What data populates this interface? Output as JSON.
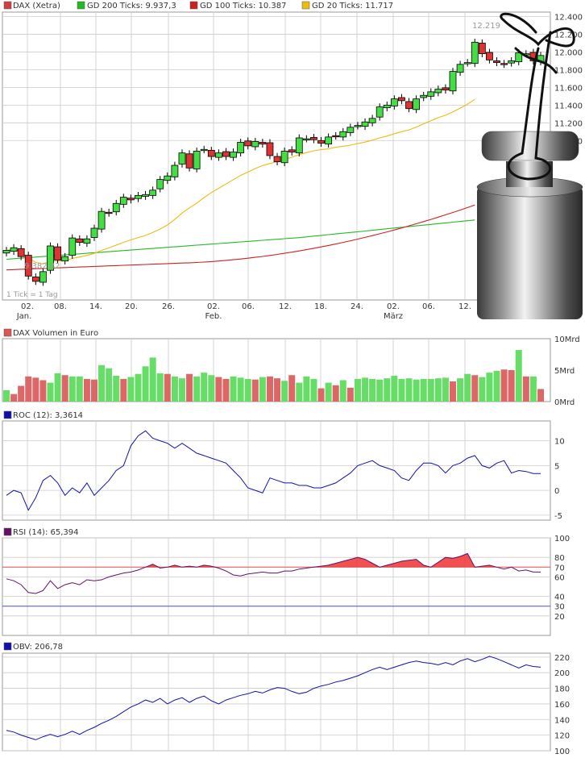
{
  "colors": {
    "candle_up": "#44dd44",
    "candle_down": "#dd3333",
    "ma200": "#22bb22",
    "ma100": "#cc2222",
    "ma20": "#eebb11",
    "roc": "#1111aa",
    "rsi": "#661166",
    "rsi_fill": "#ee3333",
    "obv": "#1111aa",
    "grid": "#cccccc"
  },
  "chart_data": [
    {
      "type": "candlestick",
      "legend": [
        "DAX (Xetra)",
        "GD 200 Ticks: 9.937,3",
        "GD 100 Ticks: 10.387",
        "GD 20 Ticks: 11.717"
      ],
      "ylim": [
        9200,
        12450
      ],
      "yticks": [
        11000,
        11200,
        11400,
        11600,
        11800,
        12000,
        12200,
        12400
      ],
      "ytick_labels": [
        "11.000",
        "11.200",
        "11.400",
        "11.600",
        "11.800",
        "12.000",
        "12.200",
        "12.400"
      ],
      "xtick_labels": [
        "02.",
        "08.",
        "14.",
        "20.",
        "26.",
        "02.",
        "06.",
        "12.",
        "18.",
        "24.",
        "02.",
        "06.",
        "12."
      ],
      "month_labels": [
        "Jan.",
        "Feb.",
        "März"
      ],
      "annotations": [
        "12.219",
        "9.382,82",
        "1 Tick = 1 Tag"
      ],
      "close": [
        9760,
        9790,
        9690,
        9470,
        9410,
        9520,
        9810,
        9650,
        9690,
        9900,
        9850,
        9890,
        10010,
        10200,
        10180,
        10290,
        10360,
        10330,
        10380,
        10390,
        10440,
        10560,
        10600,
        10720,
        10860,
        10690,
        10880,
        10900,
        10820,
        10860,
        10820,
        10870,
        10980,
        10940,
        10990,
        10960,
        10830,
        10760,
        10880,
        10870,
        11030,
        11020,
        11010,
        10970,
        11040,
        11050,
        11100,
        11150,
        11170,
        11210,
        11250,
        11380,
        11400,
        11470,
        11450,
        11360,
        11470,
        11510,
        11550,
        11580,
        11570,
        11780,
        11860,
        11880,
        12110,
        11980,
        11910,
        11880,
        11860,
        11900,
        11990,
        11980,
        11900,
        11960
      ]
    },
    {
      "type": "bar",
      "legend": [
        "DAX Volumen in Euro"
      ],
      "ylim": [
        0,
        10
      ],
      "ytick_labels": [
        "0Mrd",
        "5Mrd",
        "10Mrd"
      ],
      "values": [
        1.8,
        1.2,
        2.5,
        4.0,
        3.8,
        3.4,
        3.0,
        4.5,
        4.2,
        4.0,
        4.0,
        3.6,
        3.5,
        5.8,
        5.3,
        4.1,
        3.6,
        3.9,
        4.4,
        5.6,
        7.0,
        4.5,
        4.4,
        4.0,
        3.7,
        4.4,
        4.0,
        4.6,
        4.2,
        3.9,
        3.6,
        4.0,
        3.8,
        3.6,
        3.5,
        3.9,
        4.0,
        3.7,
        3.3,
        4.2,
        3.0,
        4.0,
        3.6,
        2.1,
        3.0,
        2.6,
        3.4,
        2.2,
        3.6,
        3.8,
        3.6,
        3.5,
        3.7,
        4.1,
        3.6,
        3.7,
        3.5,
        3.6,
        3.6,
        3.7,
        3.8,
        3.2,
        3.7,
        4.4,
        4.2,
        3.9,
        4.6,
        4.9,
        5.1,
        5.0,
        8.2,
        4.0,
        4.0,
        2.0
      ],
      "colors": [
        "g",
        "r",
        "r",
        "r",
        "r",
        "r",
        "g",
        "g",
        "r",
        "g",
        "g",
        "r",
        "r",
        "g",
        "g",
        "g",
        "r",
        "g",
        "g",
        "g",
        "g",
        "g",
        "r",
        "g",
        "g",
        "r",
        "g",
        "g",
        "g",
        "r",
        "r",
        "g",
        "g",
        "g",
        "r",
        "g",
        "r",
        "r",
        "g",
        "r",
        "g",
        "g",
        "g",
        "r",
        "g",
        "r",
        "g",
        "r",
        "g",
        "g",
        "g",
        "g",
        "g",
        "g",
        "g",
        "g",
        "g",
        "g",
        "g",
        "g",
        "g",
        "r",
        "g",
        "g",
        "r",
        "g",
        "g",
        "g",
        "r",
        "r",
        "g",
        "r",
        "g",
        "r"
      ]
    },
    {
      "type": "line",
      "legend": [
        "ROC (12): 3,3614"
      ],
      "ylim": [
        -6,
        14
      ],
      "yticks": [
        -5,
        0,
        5,
        10
      ],
      "ytick_labels": [
        "-5",
        "0",
        "5",
        "10"
      ],
      "values": [
        -1.0,
        0.0,
        -0.5,
        -4.0,
        -1.5,
        2.0,
        3.0,
        1.5,
        -1.0,
        0.5,
        -0.5,
        1.5,
        -1.0,
        0.5,
        2.0,
        4.0,
        5.0,
        9.0,
        11.0,
        12.0,
        10.5,
        10.0,
        9.5,
        8.5,
        9.5,
        8.5,
        7.5,
        7.0,
        6.5,
        6.0,
        5.5,
        4.0,
        2.5,
        0.5,
        0.0,
        -0.5,
        2.5,
        2.0,
        1.5,
        1.5,
        1.0,
        1.0,
        0.5,
        0.5,
        1.0,
        1.5,
        2.5,
        3.5,
        5.0,
        5.5,
        6.0,
        5.0,
        4.5,
        4.0,
        2.5,
        2.0,
        4.0,
        5.5,
        5.5,
        5.0,
        3.5,
        5.0,
        5.5,
        6.5,
        7.0,
        5.0,
        4.5,
        5.5,
        6.0,
        3.5,
        4.0,
        3.8,
        3.4,
        3.4
      ]
    },
    {
      "type": "area",
      "legend": [
        "RSI (14): 65,394"
      ],
      "ylim": [
        0,
        100
      ],
      "yticks": [
        20,
        30,
        40,
        60,
        70,
        80,
        100
      ],
      "ytick_labels": [
        "20",
        "30",
        "40",
        "60",
        "70",
        "80",
        "100"
      ],
      "values": [
        58,
        56,
        52,
        44,
        43,
        46,
        56,
        48,
        52,
        54,
        52,
        57,
        56,
        57,
        60,
        62,
        64,
        65,
        67,
        70,
        73,
        69,
        70,
        72,
        70,
        71,
        70,
        72,
        71,
        69,
        66,
        62,
        61,
        63,
        64,
        65,
        64,
        64,
        66,
        66,
        68,
        69,
        70,
        71,
        72,
        74,
        76,
        78,
        80,
        78,
        74,
        70,
        72,
        74,
        76,
        77,
        78,
        72,
        70,
        75,
        80,
        79,
        81,
        84,
        70,
        71,
        72,
        70,
        68,
        70,
        66,
        67,
        65,
        65
      ]
    },
    {
      "type": "line",
      "legend": [
        "OBV: 206,78"
      ],
      "ylim": [
        100,
        225
      ],
      "yticks": [
        100,
        120,
        140,
        160,
        180,
        200,
        220
      ],
      "ytick_labels": [
        "100",
        "120",
        "140",
        "160",
        "180",
        "200",
        "220"
      ],
      "values": [
        126,
        124,
        120,
        117,
        114,
        118,
        121,
        118,
        121,
        125,
        121,
        126,
        130,
        135,
        139,
        144,
        150,
        156,
        160,
        165,
        162,
        167,
        160,
        165,
        168,
        162,
        167,
        170,
        164,
        160,
        165,
        168,
        171,
        173,
        176,
        174,
        178,
        181,
        180,
        176,
        173,
        175,
        180,
        183,
        185,
        188,
        190,
        193,
        196,
        200,
        204,
        207,
        204,
        207,
        210,
        213,
        215,
        213,
        212,
        210,
        213,
        210,
        215,
        218,
        214,
        217,
        221,
        218,
        214,
        210,
        206,
        210,
        208,
        207
      ]
    }
  ]
}
